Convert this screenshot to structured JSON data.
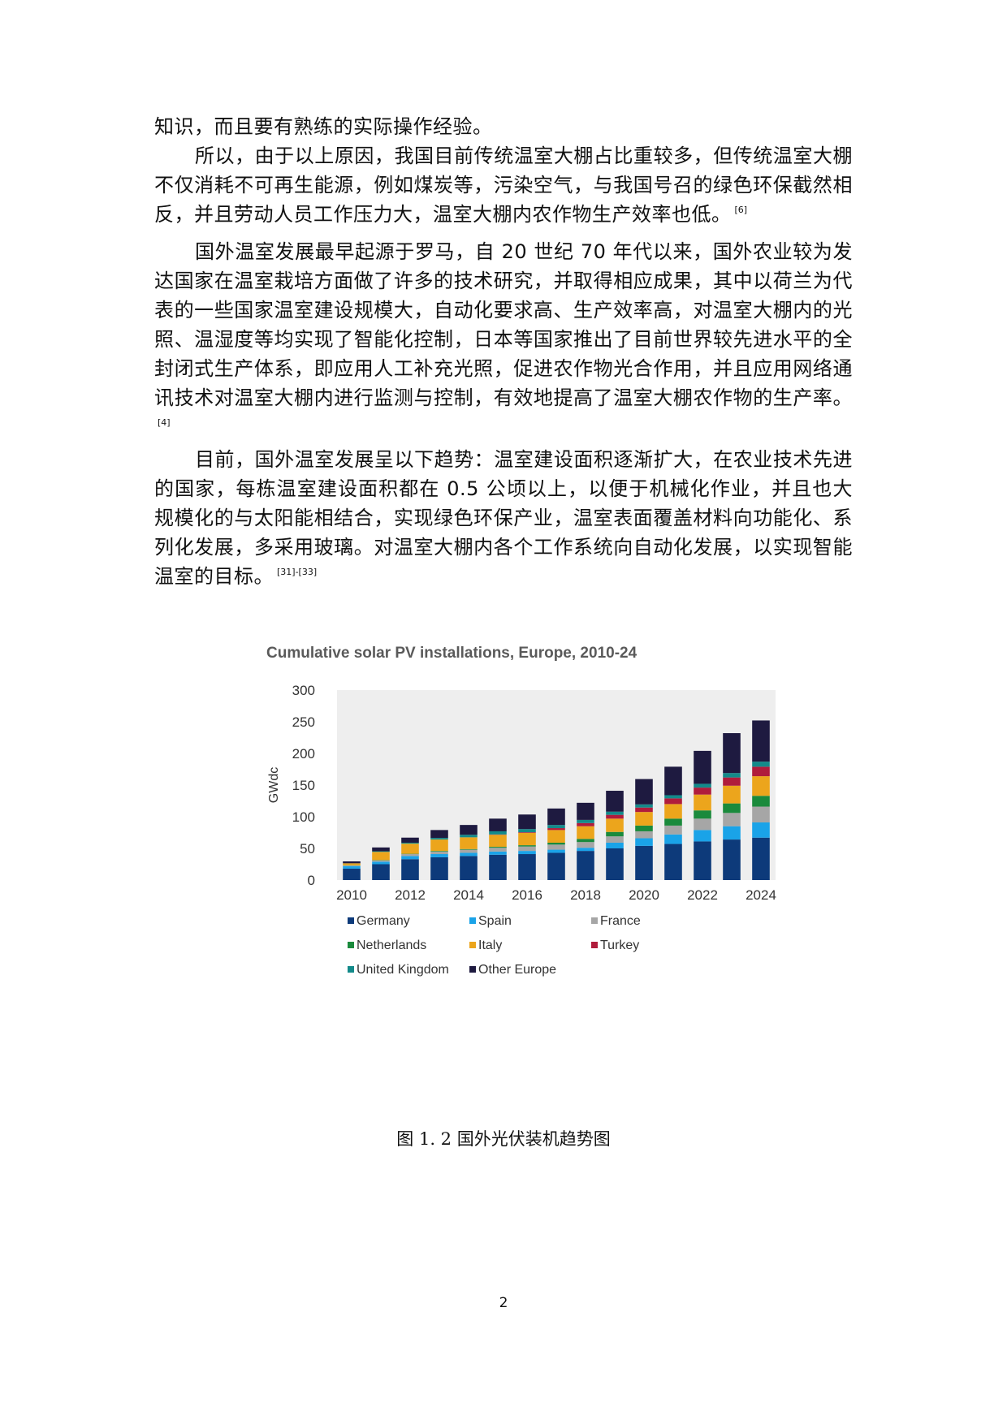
{
  "paragraphs": [
    {
      "text": "知识，而且要有熟练的实际操作经验。",
      "cite": ""
    },
    {
      "text": "所以，由于以上原因，我国目前传统温室大棚占比重较多，但传统温室大棚不仅消耗不可再生能源，例如煤炭等，污染空气，与我国号召的绿色环保截然相反，并且劳动人员工作压力大，温室大棚内农作物生产效率也低。",
      "cite": "[6]"
    },
    {
      "text": "国外温室发展最早起源于罗马，自 20 世纪 70 年代以来，国外农业较为发达国家在温室栽培方面做了许多的技术研究，并取得相应成果，其中以荷兰为代表的一些国家温室建设规模大，自动化要求高、生产效率高，对温室大棚内的光照、温湿度等均实现了智能化控制，日本等国家推出了目前世界较先进水平的全封闭式生产体系，即应用人工补充光照，促进农作物光合作用，并且应用网络通讯技术对温室大棚内进行监测与控制，有效地提高了温室大棚农作物的生产率。",
      "cite": "[4]"
    },
    {
      "text": "目前，国外温室发展呈以下趋势：温室建设面积逐渐扩大，在农业技术先进的国家，每栋温室建设面积都在 0.5 公顷以上，以便于机械化作业，并且也大规模化的与太阳能相结合，实现绿色环保产业，温室表面覆盖材料向功能化、系列化发展，多采用玻璃。对温室大棚内各个工作系统向自动化发展，以实现智能温室的目标。",
      "cite": "[31]-[33]"
    }
  ],
  "chart_data": {
    "type": "bar",
    "stacked": true,
    "title": "Cumulative solar PV installations, Europe, 2010-24",
    "ylabel": "GWdc",
    "xlabel": "",
    "ylim": [
      0,
      300
    ],
    "yticks": [
      0,
      50,
      100,
      150,
      200,
      250,
      300
    ],
    "categories": [
      "2010",
      "2011",
      "2012",
      "2013",
      "2014",
      "2015",
      "2016",
      "2017",
      "2018",
      "2019",
      "2020",
      "2021",
      "2022",
      "2023",
      "2024"
    ],
    "xtick_labels": [
      "2010",
      "",
      "2012",
      "",
      "2014",
      "",
      "2016",
      "",
      "2018",
      "",
      "2020",
      "",
      "2022",
      "",
      "2024"
    ],
    "legend_position": "bottom",
    "series": [
      {
        "name": "Germany",
        "color": "#0d3a7a",
        "values": [
          18,
          25,
          33,
          36,
          38,
          40,
          41,
          43,
          46,
          50,
          54,
          57,
          61,
          64,
          67
        ]
      },
      {
        "name": "Spain",
        "color": "#1aa3e8",
        "values": [
          4,
          4,
          5,
          5,
          5,
          5,
          5,
          5,
          5,
          9,
          12,
          15,
          18,
          21,
          24
        ]
      },
      {
        "name": "France",
        "color": "#a6a6a6",
        "values": [
          1,
          2,
          3,
          4,
          5,
          6,
          7,
          8,
          9,
          10,
          11,
          14,
          18,
          21,
          25
        ]
      },
      {
        "name": "Netherlands",
        "color": "#1a8a3c",
        "values": [
          0.5,
          0.5,
          0.5,
          1,
          1,
          1.5,
          2,
          3,
          5,
          7,
          9,
          11,
          13,
          15,
          17
        ]
      },
      {
        "name": "Italy",
        "color": "#eca51c",
        "values": [
          3,
          13,
          16,
          18,
          18.5,
          19,
          19.5,
          20,
          20,
          21,
          21.5,
          23,
          25,
          28,
          31
        ]
      },
      {
        "name": "Turkey",
        "color": "#b01c3c",
        "values": [
          0,
          0,
          0,
          0,
          0,
          0.5,
          1,
          3,
          5,
          6,
          7,
          9,
          11,
          13,
          15
        ]
      },
      {
        "name": "United Kingdom",
        "color": "#138a8a",
        "values": [
          0,
          1,
          1.5,
          2.5,
          4,
          5,
          5,
          5,
          5,
          5,
          5,
          5,
          6,
          7,
          8
        ]
      },
      {
        "name": "Other Europe",
        "color": "#1e1a40",
        "values": [
          3,
          6,
          8,
          12.5,
          15.5,
          20,
          23,
          26,
          27,
          33,
          40,
          45,
          52,
          63,
          65
        ]
      }
    ]
  },
  "caption": "图 1. 2 国外光伏装机趋势图",
  "page_number": "2"
}
